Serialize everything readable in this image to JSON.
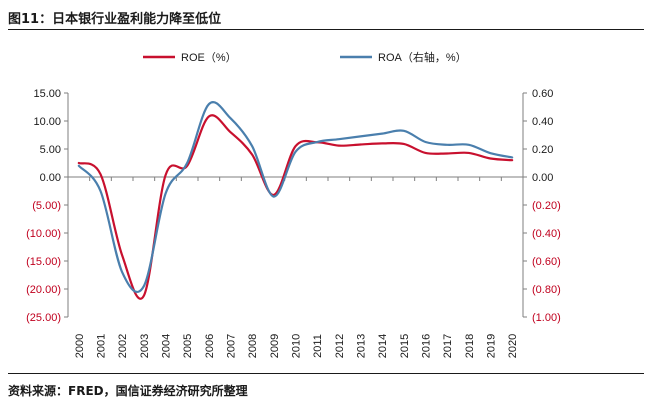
{
  "figure": {
    "title": "图11：日本银行业盈利能力降至低位",
    "source": "资料来源：FRED，国信证券经济研究所整理"
  },
  "chart_data": {
    "type": "line",
    "x": [
      "2000",
      "2001",
      "2002",
      "2003",
      "2004",
      "2005",
      "2006",
      "2007",
      "2008",
      "2009",
      "2010",
      "2011",
      "2012",
      "2013",
      "2014",
      "2015",
      "2016",
      "2017",
      "2018",
      "2019",
      "2020"
    ],
    "y_left": {
      "ylim": [
        -25,
        15
      ],
      "ticks": [
        15,
        10,
        5,
        0,
        -5,
        -10,
        -15,
        -20,
        -25
      ],
      "tick_labels": [
        "15.00",
        "10.00",
        "5.00",
        "0.00",
        "(5.00)",
        "(10.00)",
        "(15.00)",
        "(20.00)",
        "(25.00)"
      ]
    },
    "y_right": {
      "ylim": [
        -1.0,
        0.6
      ],
      "ticks": [
        0.6,
        0.4,
        0.2,
        0.0,
        -0.2,
        -0.4,
        -0.6,
        -0.8,
        -1.0
      ],
      "tick_labels": [
        "0.60",
        "0.40",
        "0.20",
        "0.00",
        "(0.20)",
        "(0.40)",
        "(0.60)",
        "(0.80)",
        "(1.00)"
      ]
    },
    "negative_tick_color": "#c0001e",
    "series": [
      {
        "name": "ROE（%）",
        "axis": "left",
        "color": "#c8102e",
        "values": [
          2.5,
          0.5,
          -14.0,
          -21.2,
          0.3,
          2.0,
          10.8,
          8.0,
          4.0,
          -3.2,
          5.5,
          6.2,
          5.6,
          5.8,
          6.0,
          5.9,
          4.3,
          4.2,
          4.3,
          3.3,
          3.0
        ]
      },
      {
        "name": "ROA（右轴，%）",
        "axis": "right",
        "color": "#4a7fad",
        "values": [
          0.08,
          -0.1,
          -0.68,
          -0.78,
          -0.12,
          0.1,
          0.52,
          0.42,
          0.22,
          -0.14,
          0.18,
          0.25,
          0.27,
          0.29,
          0.31,
          0.33,
          0.25,
          0.23,
          0.23,
          0.17,
          0.14
        ]
      }
    ],
    "legend_position": "top",
    "grid": false
  }
}
